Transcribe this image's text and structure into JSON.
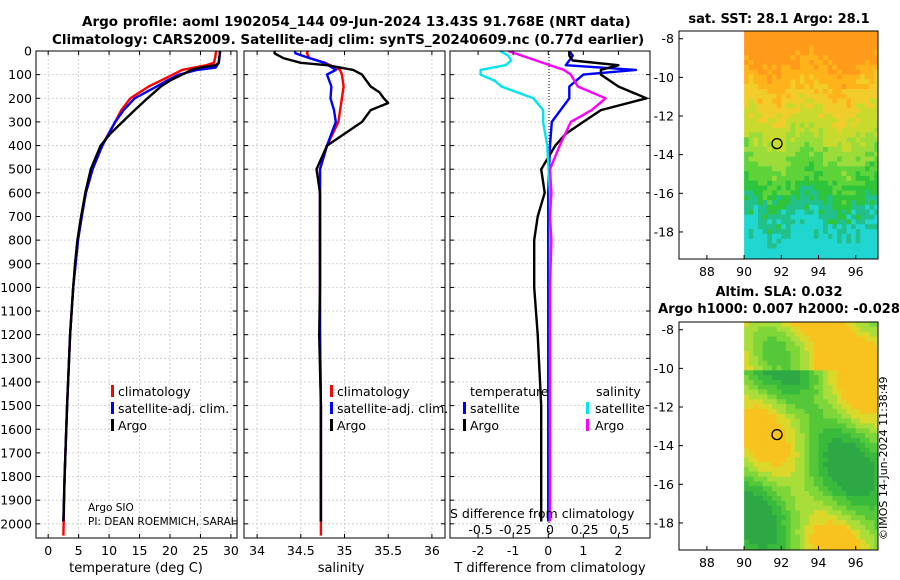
{
  "header": {
    "line1": "Argo profile: aoml 1902054_144 09-Jun-2024 13.43S 91.768E (NRT data)",
    "line2": "Climatology: CARS2009. Satellite-adj clim: synTS_20240609.nc (0.77d earlier)"
  },
  "credit": "©IMOS 14-Jun-2024 11:38:49",
  "colors": {
    "climatology": "#ff0000",
    "satellite": "#0000ff",
    "argo": "#000000",
    "sat_salinity": "#00e5ee",
    "argo_salinity": "#ff00ff"
  },
  "chart_data": [
    {
      "id": "temperature",
      "type": "line",
      "xlabel": "temperature (deg C)",
      "xlim": [
        -2,
        31
      ],
      "xticks": [
        0,
        5,
        10,
        15,
        20,
        25,
        30
      ],
      "ylim": [
        2060,
        0
      ],
      "yticks": [
        0,
        100,
        200,
        300,
        400,
        500,
        600,
        700,
        800,
        900,
        1000,
        1100,
        1200,
        1300,
        1400,
        1500,
        1600,
        1700,
        1800,
        1900,
        2000
      ],
      "ylabels_visible": true,
      "legend": [
        "climatology",
        "satellite-adj. clim.",
        "Argo"
      ],
      "annotations": [
        "Argo SIO",
        "PI: DEAN ROEMMICH, SARAH"
      ],
      "series": [
        {
          "name": "climatology",
          "color": "#ff0000",
          "depth": [
            0,
            10,
            30,
            50,
            60,
            70,
            80,
            100,
            125,
            150,
            200,
            250,
            300,
            400,
            500,
            600,
            700,
            800,
            900,
            1000,
            1200,
            1500,
            1800,
            2050
          ],
          "values": [
            27.6,
            27.5,
            27.4,
            27.2,
            26,
            24,
            22,
            20.5,
            18.5,
            16.5,
            13.5,
            12,
            11,
            8.8,
            7.3,
            6.2,
            5.5,
            4.9,
            4.5,
            4.1,
            3.6,
            3.1,
            2.7,
            2.5
          ]
        },
        {
          "name": "satellite-adj. clim.",
          "color": "#0000ff",
          "depth": [
            0,
            10,
            30,
            50,
            70,
            80,
            100,
            125,
            150,
            200,
            250,
            300,
            400,
            500,
            600,
            700,
            800,
            900,
            1000,
            1200,
            1500,
            1800,
            1990
          ],
          "values": [
            28.2,
            28.2,
            28.1,
            28,
            27.5,
            24.5,
            21.5,
            19.5,
            17.8,
            14.2,
            12.4,
            11,
            8.9,
            7.3,
            6.2,
            5.5,
            4.9,
            4.5,
            4.1,
            3.6,
            3.1,
            2.7,
            2.5
          ]
        },
        {
          "name": "Argo",
          "color": "#000000",
          "depth": [
            0,
            10,
            30,
            50,
            60,
            70,
            80,
            100,
            125,
            150,
            200,
            250,
            300,
            350,
            400,
            500,
            600,
            700,
            800,
            900,
            1000,
            1200,
            1500,
            1800,
            1990
          ],
          "values": [
            28.2,
            28.2,
            28.1,
            28,
            27.5,
            25,
            23.5,
            22,
            20,
            18.5,
            16.3,
            14.2,
            12.2,
            10.2,
            8.6,
            7,
            6.1,
            5.4,
            4.8,
            4.4,
            4.1,
            3.6,
            3.1,
            2.7,
            2.5
          ]
        }
      ]
    },
    {
      "id": "salinity",
      "type": "line",
      "xlabel": "salinity",
      "xlim": [
        33.85,
        36.15
      ],
      "xticks": [
        34,
        34.5,
        35,
        35.5,
        36
      ],
      "ylim": [
        2060,
        0
      ],
      "yticks": [
        0,
        100,
        200,
        300,
        400,
        500,
        600,
        700,
        800,
        900,
        1000,
        1100,
        1200,
        1300,
        1400,
        1500,
        1600,
        1700,
        1800,
        1900,
        2000
      ],
      "ylabels_visible": false,
      "legend": [
        "climatology",
        "satellite-adj. clim.",
        "Argo"
      ],
      "series": [
        {
          "name": "climatology",
          "color": "#ff0000",
          "depth": [
            0,
            10,
            30,
            50,
            80,
            100,
            150,
            200,
            250,
            300,
            400,
            500,
            600,
            800,
            1000,
            1200,
            1500,
            2050
          ],
          "values": [
            34.58,
            34.57,
            34.6,
            34.78,
            34.95,
            34.97,
            34.99,
            34.97,
            34.95,
            34.93,
            34.8,
            34.72,
            34.72,
            34.72,
            34.72,
            34.72,
            34.73,
            34.73
          ]
        },
        {
          "name": "satellite-adj. clim.",
          "color": "#0000ff",
          "depth": [
            0,
            10,
            30,
            50,
            80,
            100,
            150,
            200,
            250,
            300,
            400,
            500,
            600,
            800,
            1000,
            1200,
            1500,
            1990
          ],
          "values": [
            34.43,
            34.44,
            34.6,
            34.77,
            34.9,
            34.8,
            34.85,
            34.84,
            34.88,
            34.9,
            34.8,
            34.72,
            34.72,
            34.72,
            34.72,
            34.72,
            34.73,
            34.73
          ]
        },
        {
          "name": "Argo",
          "color": "#000000",
          "depth": [
            0,
            10,
            30,
            50,
            60,
            80,
            100,
            125,
            150,
            175,
            200,
            220,
            250,
            300,
            400,
            500,
            600,
            800,
            1000,
            1200,
            1500,
            1990
          ],
          "values": [
            34.2,
            34.2,
            34.3,
            34.5,
            34.8,
            35.1,
            35.2,
            35.25,
            35.3,
            35.4,
            35.45,
            35.5,
            35.3,
            35.2,
            34.8,
            34.68,
            34.72,
            34.72,
            34.72,
            34.71,
            34.73,
            34.73
          ]
        }
      ]
    },
    {
      "id": "difference",
      "type": "line",
      "xlabel": "T difference from climatology",
      "top_xlabel": "S difference from climatology",
      "xlim": [
        -2.8,
        2.9
      ],
      "xticks": [
        -2,
        -1,
        0,
        1,
        2
      ],
      "top_xticks": [
        -0.5,
        -0.25,
        0,
        0.25,
        0.5
      ],
      "top_ticklabels": [
        "-0.5",
        "-0.25",
        "0",
        "0.25",
        "0.5"
      ],
      "ylim": [
        2060,
        0
      ],
      "yticks": [
        0,
        100,
        200,
        300,
        400,
        500,
        600,
        700,
        800,
        900,
        1000,
        1100,
        1200,
        1300,
        1400,
        1500,
        1600,
        1700,
        1800,
        1900,
        2000
      ],
      "ylabels_visible": false,
      "legend_left_title": "temperature",
      "legend_right_title": "salinity",
      "legend_left": [
        "satellite",
        "Argo"
      ],
      "legend_right": [
        "satellite",
        "Argo"
      ],
      "series": [
        {
          "name": "T satellite",
          "color": "#0000ff",
          "depth": [
            0,
            20,
            40,
            60,
            80,
            100,
            150,
            200,
            300,
            400,
            600,
            1000,
            1500,
            1990
          ],
          "values": [
            0.6,
            0.7,
            0.6,
            0.5,
            2.5,
            1.0,
            0.6,
            0.6,
            0.1,
            0.05,
            0.0,
            0.0,
            0.0,
            0.0
          ]
        },
        {
          "name": "T Argo",
          "color": "#000000",
          "depth": [
            0,
            20,
            40,
            60,
            80,
            100,
            150,
            200,
            250,
            300,
            350,
            400,
            500,
            600,
            700,
            800,
            1000,
            1200,
            1500,
            1990
          ],
          "values": [
            0.6,
            0.6,
            0.7,
            2.0,
            1.5,
            1.5,
            2.0,
            2.8,
            1.5,
            1.0,
            0.5,
            0.2,
            -0.2,
            -0.1,
            -0.3,
            -0.4,
            -0.4,
            -0.3,
            -0.2,
            -0.2
          ]
        },
        {
          "name": "S satellite",
          "color": "#00e5ee",
          "depth": [
            0,
            20,
            40,
            60,
            80,
            100,
            125,
            150,
            200,
            250,
            300,
            400,
            600,
            1000,
            1500,
            1990
          ],
          "values": [
            -0.36,
            -0.3,
            -0.28,
            -0.32,
            -0.5,
            -0.5,
            -0.4,
            -0.35,
            -0.12,
            -0.05,
            -0.05,
            -0.02,
            0,
            0,
            0,
            0
          ]
        },
        {
          "name": "S Argo",
          "color": "#ff00ff",
          "depth": [
            0,
            20,
            40,
            60,
            80,
            100,
            150,
            200,
            250,
            300,
            400,
            500,
            600,
            700,
            800,
            1000,
            1500,
            1990
          ],
          "values": [
            -0.3,
            -0.2,
            -0.1,
            0.0,
            0.1,
            0.15,
            0.2,
            0.4,
            0.3,
            0.15,
            0.07,
            0.0,
            0.01,
            0.0,
            0.01,
            0.0,
            0.0,
            0.0
          ]
        }
      ]
    },
    {
      "id": "sst_map",
      "type": "heatmap",
      "title": "sat. SST: 28.1 Argo: 28.1",
      "xlim": [
        86.5,
        97.2
      ],
      "ylim": [
        -19.4,
        -7.6
      ],
      "xticks": [
        88,
        90,
        92,
        94,
        96
      ],
      "yticks": [
        -8,
        -10,
        -12,
        -14,
        -16,
        -18
      ],
      "data_xmin": 90,
      "marker": [
        91.77,
        -13.43
      ],
      "colors": [
        "#ff9a1a",
        "#ffb31a",
        "#f2cc2a",
        "#c9da2f",
        "#9bdc3a",
        "#5fd33a",
        "#2ec43c",
        "#22c08a",
        "#21d6d0"
      ]
    },
    {
      "id": "sla_map",
      "type": "heatmap",
      "title1": "Altim. SLA: 0.032",
      "title2": "Argo h1000: 0.007 h2000: -0.028",
      "xlim": [
        86.5,
        97.2
      ],
      "ylim": [
        -19.4,
        -7.6
      ],
      "xticks": [
        88,
        90,
        92,
        94,
        96
      ],
      "yticks": [
        -8,
        -10,
        -12,
        -14,
        -16,
        -18
      ],
      "data_xmin": 90,
      "marker": [
        91.77,
        -13.43
      ],
      "colors": [
        "#f8c21f",
        "#dcd82b",
        "#a8dd3a",
        "#7fd638",
        "#55c83a",
        "#3aba3c",
        "#2ea844"
      ]
    }
  ]
}
